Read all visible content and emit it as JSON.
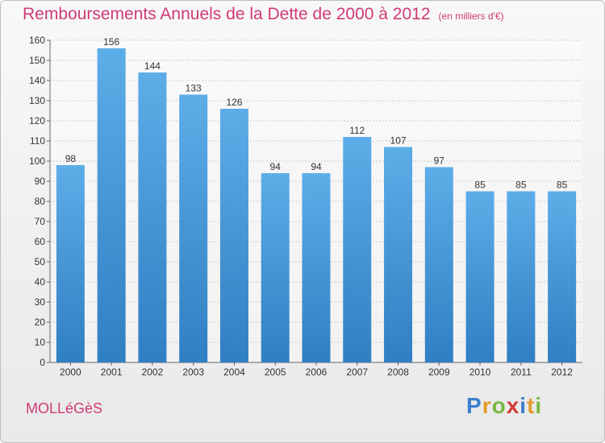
{
  "title": "Remboursements Annuels de la Dette de 2000 à 2012",
  "unit": "(en milliers d'€)",
  "place": "MOLLéGèS",
  "logo": {
    "letters": [
      {
        "ch": "P",
        "color": "#3a7fd0"
      },
      {
        "ch": "r",
        "color": "#e39b2c"
      },
      {
        "ch": "o",
        "color": "#77b843"
      },
      {
        "ch": "x",
        "color": "#d13a3a"
      },
      {
        "ch": "i",
        "color": "#3a7fd0"
      },
      {
        "ch": "t",
        "color": "#e39b2c"
      },
      {
        "ch": "i",
        "color": "#77b843"
      }
    ]
  },
  "colors": {
    "title": "#d03a78",
    "bar_light": "#5dade8",
    "bar_dark": "#2f7fc3",
    "grid": "#cccccc"
  },
  "chart_data": {
    "type": "bar",
    "categories": [
      "2000",
      "2001",
      "2002",
      "2003",
      "2004",
      "2005",
      "2006",
      "2007",
      "2008",
      "2009",
      "2010",
      "2011",
      "2012"
    ],
    "values": [
      98,
      156,
      144,
      133,
      126,
      94,
      94,
      112,
      107,
      97,
      85,
      85,
      85
    ],
    "ylim": [
      0,
      160
    ],
    "yticks": [
      0,
      10,
      20,
      30,
      40,
      50,
      60,
      70,
      80,
      90,
      100,
      110,
      120,
      130,
      140,
      150,
      160
    ],
    "grid": true,
    "xlabel": "",
    "ylabel": ""
  }
}
